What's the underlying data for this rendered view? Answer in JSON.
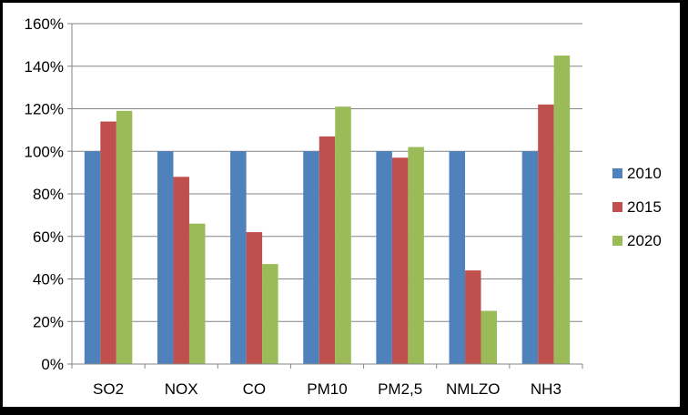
{
  "chart_data": {
    "type": "bar",
    "categories": [
      "SO2",
      "NOX",
      "CO",
      "PM10",
      "PM2,5",
      "NMLZO",
      "NH3"
    ],
    "series": [
      {
        "name": "2010",
        "color": "#4F81BD",
        "values": [
          100,
          100,
          100,
          100,
          100,
          100,
          100
        ]
      },
      {
        "name": "2015",
        "color": "#C0504D",
        "values": [
          114,
          88,
          62,
          107,
          97,
          44,
          122
        ]
      },
      {
        "name": "2020",
        "color": "#9BBB59",
        "values": [
          119,
          66,
          47,
          121,
          102,
          25,
          145
        ]
      }
    ],
    "yticks": [
      "0%",
      "20%",
      "40%",
      "60%",
      "80%",
      "100%",
      "120%",
      "140%",
      "160%"
    ],
    "ylim": [
      0,
      160
    ],
    "grid": true,
    "legend_position": "right"
  }
}
